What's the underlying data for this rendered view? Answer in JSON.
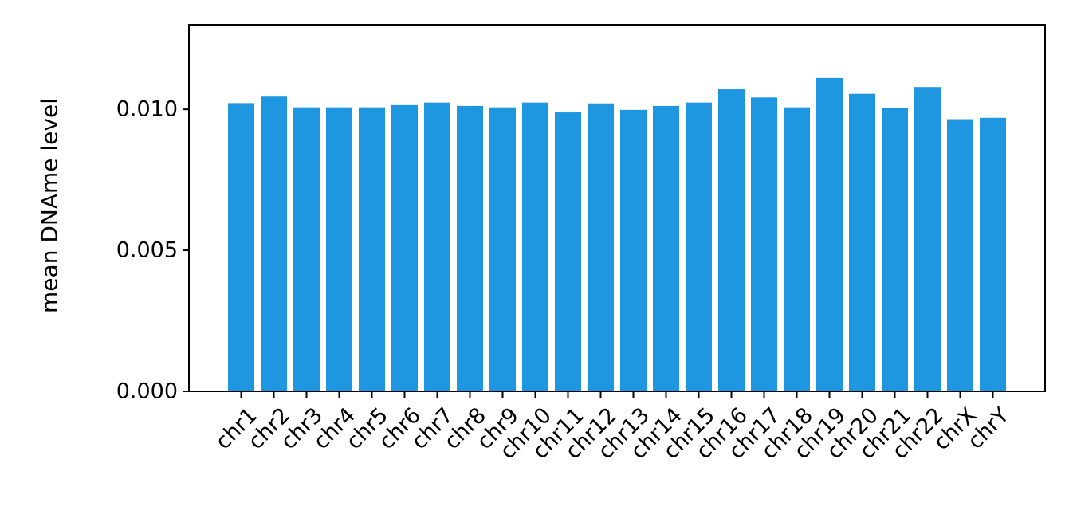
{
  "chart_data": {
    "type": "bar",
    "title": "",
    "xlabel": "",
    "ylabel": "mean DNAme level",
    "categories": [
      "chr1",
      "chr2",
      "chr3",
      "chr4",
      "chr5",
      "chr6",
      "chr7",
      "chr8",
      "chr9",
      "chr10",
      "chr11",
      "chr12",
      "chr13",
      "chr14",
      "chr15",
      "chr16",
      "chr17",
      "chr18",
      "chr19",
      "chr20",
      "chr21",
      "chr22",
      "chrX",
      "chrY"
    ],
    "values": [
      0.01022,
      0.01045,
      0.01007,
      0.01007,
      0.01007,
      0.01015,
      0.01024,
      0.01012,
      0.01007,
      0.01024,
      0.00989,
      0.01021,
      0.00998,
      0.01012,
      0.01024,
      0.01071,
      0.01042,
      0.01007,
      0.01111,
      0.01055,
      0.01004,
      0.01079,
      0.00965,
      0.0097
    ],
    "ylim": [
      0,
      0.013
    ],
    "yticks": [
      "0.000",
      "0.005",
      "0.010"
    ],
    "ytick_values": [
      0,
      0.005,
      0.01
    ],
    "grid": false,
    "bar_color": "#1f97e0",
    "xtick_rotation_deg": -45
  }
}
